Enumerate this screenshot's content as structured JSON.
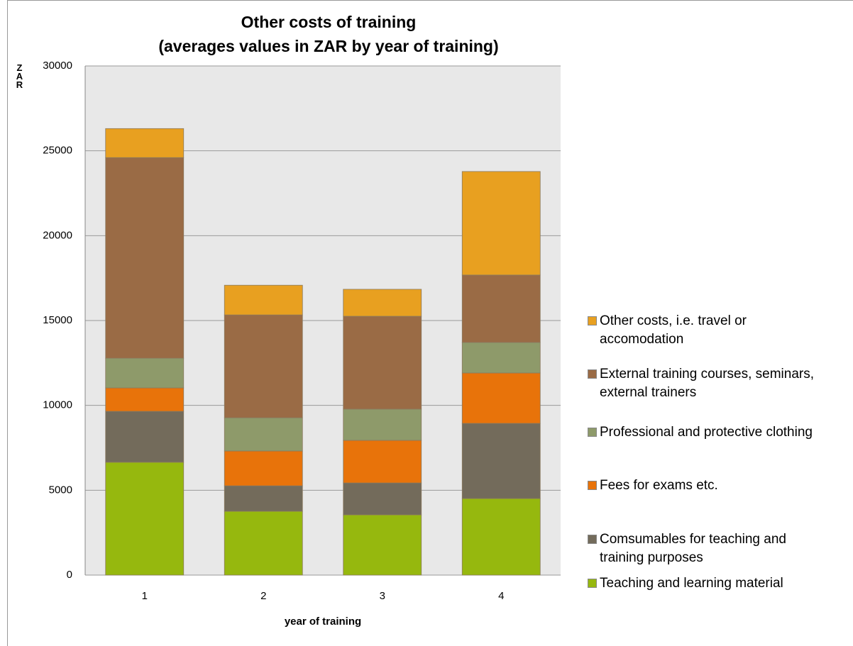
{
  "chart_data": {
    "type": "stacked_bar",
    "title": "Other costs of training",
    "subtitle": "(averages values in ZAR by year of training)",
    "y_label": "ZAR",
    "x_label": "year of training",
    "categories": [
      "1",
      "2",
      "3",
      "4"
    ],
    "series": [
      {
        "name": "Teaching and learning material",
        "color": "#96b80e",
        "values": [
          6650,
          3760,
          3550,
          4510
        ]
      },
      {
        "name": "Comsumables for teaching and training purposes",
        "color": "#736b5b",
        "values": [
          3000,
          1500,
          1880,
          4430
        ]
      },
      {
        "name": "Fees for exams etc.",
        "color": "#e8730a",
        "values": [
          1380,
          2050,
          2510,
          2970
        ]
      },
      {
        "name": "Professional and protective clothing",
        "color": "#8e9a6a",
        "values": [
          1750,
          1960,
          1840,
          1800
        ]
      },
      {
        "name": "External training courses, seminars, external trainers",
        "color": "#9a6b45",
        "values": [
          11820,
          6060,
          5470,
          3970
        ]
      },
      {
        "name": "Other costs, i.e. travel or accomodation",
        "color": "#e8a020",
        "values": [
          1710,
          1750,
          1590,
          6100
        ]
      }
    ],
    "ylim": [
      0,
      30000
    ],
    "yticks": [
      0,
      5000,
      10000,
      15000,
      20000,
      25000,
      30000
    ],
    "grid": true
  }
}
